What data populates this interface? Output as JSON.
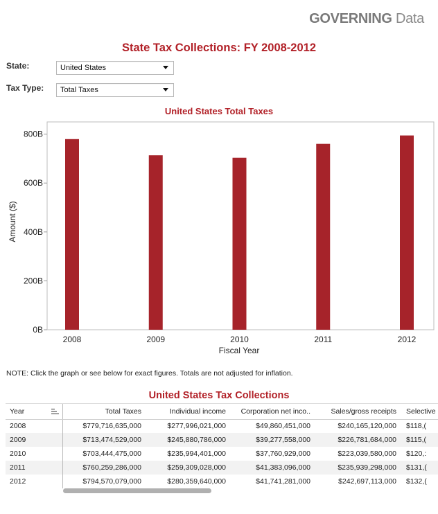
{
  "brand": {
    "bold": "GOVERNING",
    "light": "Data"
  },
  "main_title": "State Tax Collections: FY 2008-2012",
  "filters": {
    "state_label": "State:",
    "state_value": "United States",
    "tax_type_label": "Tax Type:",
    "tax_type_value": "Total Taxes"
  },
  "note": "NOTE: Click the graph or see below for exact figures. Totals are not adjusted for inflation.",
  "colors": {
    "accent": "#b22128",
    "bar": "#a6232a"
  },
  "chart_data": {
    "type": "bar",
    "title": "United States Total Taxes",
    "xlabel": "Fiscal Year",
    "ylabel": "Amount ($)",
    "categories": [
      "2008",
      "2009",
      "2010",
      "2011",
      "2012"
    ],
    "values": [
      779716635000,
      713474529000,
      703444475000,
      760259286000,
      794570079000
    ],
    "ylim": [
      0,
      850000000000
    ],
    "yticks": [
      0,
      200000000000,
      400000000000,
      600000000000,
      800000000000
    ],
    "ytick_labels": [
      "0B",
      "200B",
      "400B",
      "600B",
      "800B"
    ],
    "grid": false
  },
  "table": {
    "title": "United States Tax Collections",
    "columns": [
      "Year",
      "Total Taxes",
      "Individual income",
      "Corporation net inco..",
      "Sales/gross receipts",
      "Selective"
    ],
    "rows": [
      [
        "2008",
        "$779,716,635,000",
        "$277,996,021,000",
        "$49,860,451,000",
        "$240,165,120,000",
        "$118,("
      ],
      [
        "2009",
        "$713,474,529,000",
        "$245,880,786,000",
        "$39,277,558,000",
        "$226,781,684,000",
        "$115,("
      ],
      [
        "2010",
        "$703,444,475,000",
        "$235,994,401,000",
        "$37,760,929,000",
        "$223,039,580,000",
        "$120,:"
      ],
      [
        "2011",
        "$760,259,286,000",
        "$259,309,028,000",
        "$41,383,096,000",
        "$235,939,298,000",
        "$131,("
      ],
      [
        "2012",
        "$794,570,079,000",
        "$280,359,640,000",
        "$41,741,281,000",
        "$242,697,113,000",
        "$132,("
      ]
    ]
  }
}
